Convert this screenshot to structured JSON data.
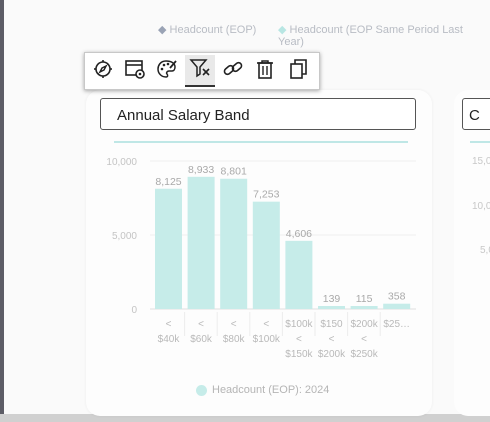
{
  "top_legend": {
    "series_a": "Headcount (EOP)",
    "series_b": "Headcount (EOP Same Period Last Year)"
  },
  "toolbar": {
    "items": [
      {
        "name": "explore-icon",
        "label": "Explore"
      },
      {
        "name": "settings-icon",
        "label": "Settings"
      },
      {
        "name": "palette-icon",
        "label": "Style"
      },
      {
        "name": "clear-filter-icon",
        "label": "Clear filter"
      },
      {
        "name": "link-icon",
        "label": "Link"
      },
      {
        "name": "delete-icon",
        "label": "Delete"
      },
      {
        "name": "duplicate-icon",
        "label": "Duplicate"
      }
    ]
  },
  "card": {
    "title": "Annual Salary Band"
  },
  "card2": {
    "title": "C",
    "ticks": [
      "15,0",
      "10,0",
      "5,0"
    ]
  },
  "chart_data": {
    "type": "bar",
    "title": "Annual Salary Band",
    "categories": [
      [
        "<",
        "$40k"
      ],
      [
        "<",
        "$60k"
      ],
      [
        "<",
        "$80k"
      ],
      [
        "<",
        "$100k"
      ],
      [
        "$100k",
        "<",
        "$150k"
      ],
      [
        "$150",
        "<",
        "$200k"
      ],
      [
        "$200k",
        "<",
        "$250k"
      ],
      [
        "$25…"
      ]
    ],
    "series": [
      {
        "name": "Headcount (EOP): 2024",
        "values": [
          8125,
          8933,
          8801,
          7253,
          4606,
          139,
          115,
          358
        ]
      }
    ],
    "data_labels": [
      "8,125",
      "8,933",
      "8,801",
      "7,253",
      "4,606",
      "139",
      "115",
      "358"
    ],
    "y_ticks": [
      "10,000",
      "5,000",
      "0"
    ],
    "ylim": [
      0,
      10000
    ],
    "color": "#c6ece9",
    "grid": true,
    "legend_position": "bottom"
  },
  "bottom_legend": {
    "label": "Headcount (EOP): 2024"
  }
}
